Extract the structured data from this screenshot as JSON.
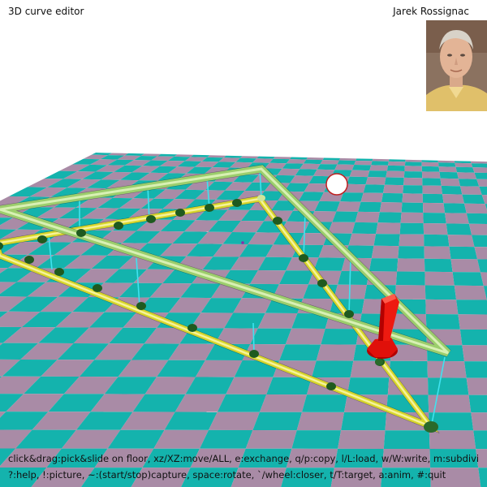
{
  "app": {
    "title": "3D curve editor",
    "author": "Jarek Rossignac"
  },
  "help": {
    "line1": "click&drag:pick&slide on floor, xz/XZ:move/ALL, e:exchange, q/p:copy, l/L:load, w/W:write, m:subdivi",
    "line2": "?:help, !:picture, ~:(start/stop)capture, space:rotate, `/wheel:closer, t/T:target, a:anim, #:quit"
  },
  "colors": {
    "floor_teal": "#14b3ad",
    "floor_mauve": "#a98ba6",
    "curve_yellow": "#d8d62a",
    "control_green": "#9cce6c",
    "vertex_dark_green": "#1f5a1f",
    "drop_line_cyan": "#3fe3f0",
    "arrow_red": "#e0100a",
    "target_white": "#ffffff"
  },
  "icons": {
    "author_photo": "author-portrait",
    "target_ball": "white-sphere",
    "pointer": "red-arrow"
  }
}
